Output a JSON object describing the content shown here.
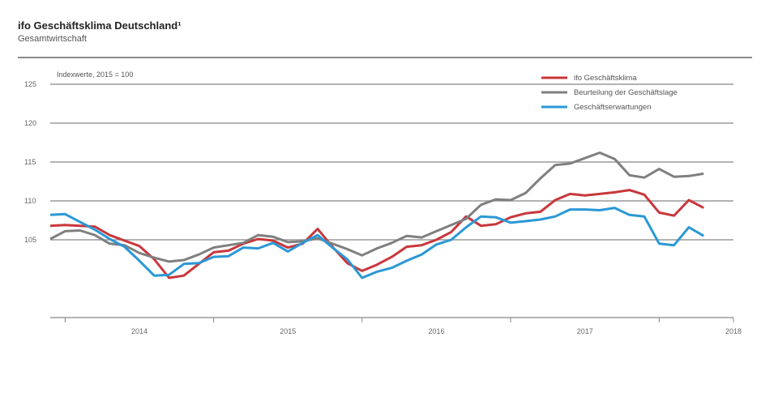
{
  "header": {
    "title": "ifo Geschäftsklima Deutschland¹",
    "subtitle": "Gesamtwirtschaft"
  },
  "chart_data": {
    "type": "line",
    "title": "ifo Geschäftsklima Deutschland¹",
    "subtitle": "Gesamtwirtschaft",
    "annotation": "Indexwerte, 2015 = 100",
    "ylim": [
      95,
      125
    ],
    "yticks": [
      "125",
      "120",
      "115",
      "110",
      "105"
    ],
    "yvalues": [
      125,
      120,
      115,
      110,
      105
    ],
    "xlim": [
      2013.9,
      2018.5
    ],
    "xticks": [
      "2014",
      "2015",
      "2016",
      "2017",
      "2018"
    ],
    "xvalues": [
      2014.5,
      2015.5,
      2016.5,
      2017.5,
      2018.5
    ],
    "grid": true,
    "legend_position": "top-right",
    "colors": {
      "klima": "#c8373b",
      "lage": "#7f7f7f",
      "erwartungen": "#2a98d6",
      "grid": "#9a9a9a"
    },
    "series": [
      {
        "name": "ifo Geschäftsklima",
        "color": "#c8373b",
        "x": [
          2013.9,
          2014.0,
          2014.1,
          2014.2,
          2014.3,
          2014.4,
          2014.5,
          2014.6,
          2014.7,
          2014.8,
          2014.9,
          2015.0,
          2015.1,
          2015.2,
          2015.3,
          2015.4,
          2015.5,
          2015.6,
          2015.7,
          2015.8,
          2015.9,
          2016.0,
          2016.1,
          2016.2,
          2016.3,
          2016.4,
          2016.5,
          2016.6,
          2016.7,
          2016.8,
          2016.9,
          2017.0,
          2017.1,
          2017.2,
          2017.3,
          2017.4,
          2017.5,
          2017.6,
          2017.7,
          2017.8,
          2017.9,
          2018.0,
          2018.1,
          2018.2,
          2018.3
        ],
        "values": [
          106.8,
          106.9,
          106.8,
          106.7,
          105.6,
          104.9,
          104.2,
          102.5,
          100.1,
          100.4,
          101.9,
          103.4,
          103.6,
          104.5,
          105.1,
          104.9,
          104.0,
          104.5,
          106.4,
          104.1,
          102.0,
          101.0,
          101.8,
          102.8,
          104.1,
          104.3,
          105.0,
          106.0,
          108.0,
          106.8,
          107.0,
          107.9,
          108.4,
          108.6,
          110.1,
          110.9,
          110.7,
          110.9,
          111.1,
          111.4,
          110.8,
          108.5,
          108.1,
          110.1,
          109.1
        ]
      },
      {
        "name": "Beurteilung der Geschäftslage",
        "color": "#7f7f7f",
        "x": [
          2013.9,
          2014.0,
          2014.1,
          2014.2,
          2014.3,
          2014.4,
          2014.5,
          2014.6,
          2014.7,
          2014.8,
          2014.9,
          2015.0,
          2015.1,
          2015.2,
          2015.3,
          2015.4,
          2015.5,
          2015.6,
          2015.7,
          2015.8,
          2015.9,
          2016.0,
          2016.1,
          2016.2,
          2016.3,
          2016.4,
          2016.5,
          2016.6,
          2016.7,
          2016.8,
          2016.9,
          2017.0,
          2017.1,
          2017.2,
          2017.3,
          2017.4,
          2017.5,
          2017.6,
          2017.7,
          2017.8,
          2017.9,
          2018.0,
          2018.1,
          2018.2,
          2018.3
        ],
        "values": [
          105.1,
          106.1,
          106.2,
          105.6,
          104.5,
          104.3,
          103.3,
          102.7,
          102.2,
          102.4,
          103.1,
          104.0,
          104.3,
          104.6,
          105.6,
          105.4,
          104.7,
          104.8,
          105.2,
          104.5,
          103.8,
          103.0,
          103.9,
          104.6,
          105.5,
          105.3,
          106.1,
          106.9,
          107.7,
          109.5,
          110.2,
          110.1,
          111.0,
          112.9,
          114.6,
          114.8,
          115.5,
          116.2,
          115.4,
          113.3,
          113.0,
          114.1,
          113.1,
          113.2,
          113.5
        ]
      },
      {
        "name": "Geschäftserwartungen",
        "color": "#2a98d6",
        "x": [
          2013.9,
          2014.0,
          2014.1,
          2014.2,
          2014.3,
          2014.4,
          2014.5,
          2014.6,
          2014.7,
          2014.8,
          2014.9,
          2015.0,
          2015.1,
          2015.2,
          2015.3,
          2015.4,
          2015.5,
          2015.6,
          2015.7,
          2015.8,
          2015.9,
          2016.0,
          2016.1,
          2016.2,
          2016.3,
          2016.4,
          2016.5,
          2016.6,
          2016.7,
          2016.8,
          2016.9,
          2017.0,
          2017.1,
          2017.2,
          2017.3,
          2017.4,
          2017.5,
          2017.6,
          2017.7,
          2017.8,
          2017.9,
          2018.0,
          2018.1,
          2018.2,
          2018.3
        ],
        "values": [
          108.2,
          108.3,
          107.3,
          106.3,
          105.1,
          104.1,
          102.3,
          100.4,
          100.5,
          101.9,
          102.0,
          102.8,
          102.9,
          104.0,
          103.9,
          104.6,
          103.5,
          104.6,
          105.6,
          104.0,
          102.5,
          100.1,
          100.9,
          101.4,
          102.3,
          103.1,
          104.4,
          105.0,
          106.6,
          108.0,
          107.9,
          107.2,
          107.4,
          107.6,
          108.0,
          108.9,
          108.9,
          108.8,
          109.1,
          108.2,
          108.0,
          104.5,
          104.3,
          106.6,
          105.5
        ]
      }
    ]
  }
}
